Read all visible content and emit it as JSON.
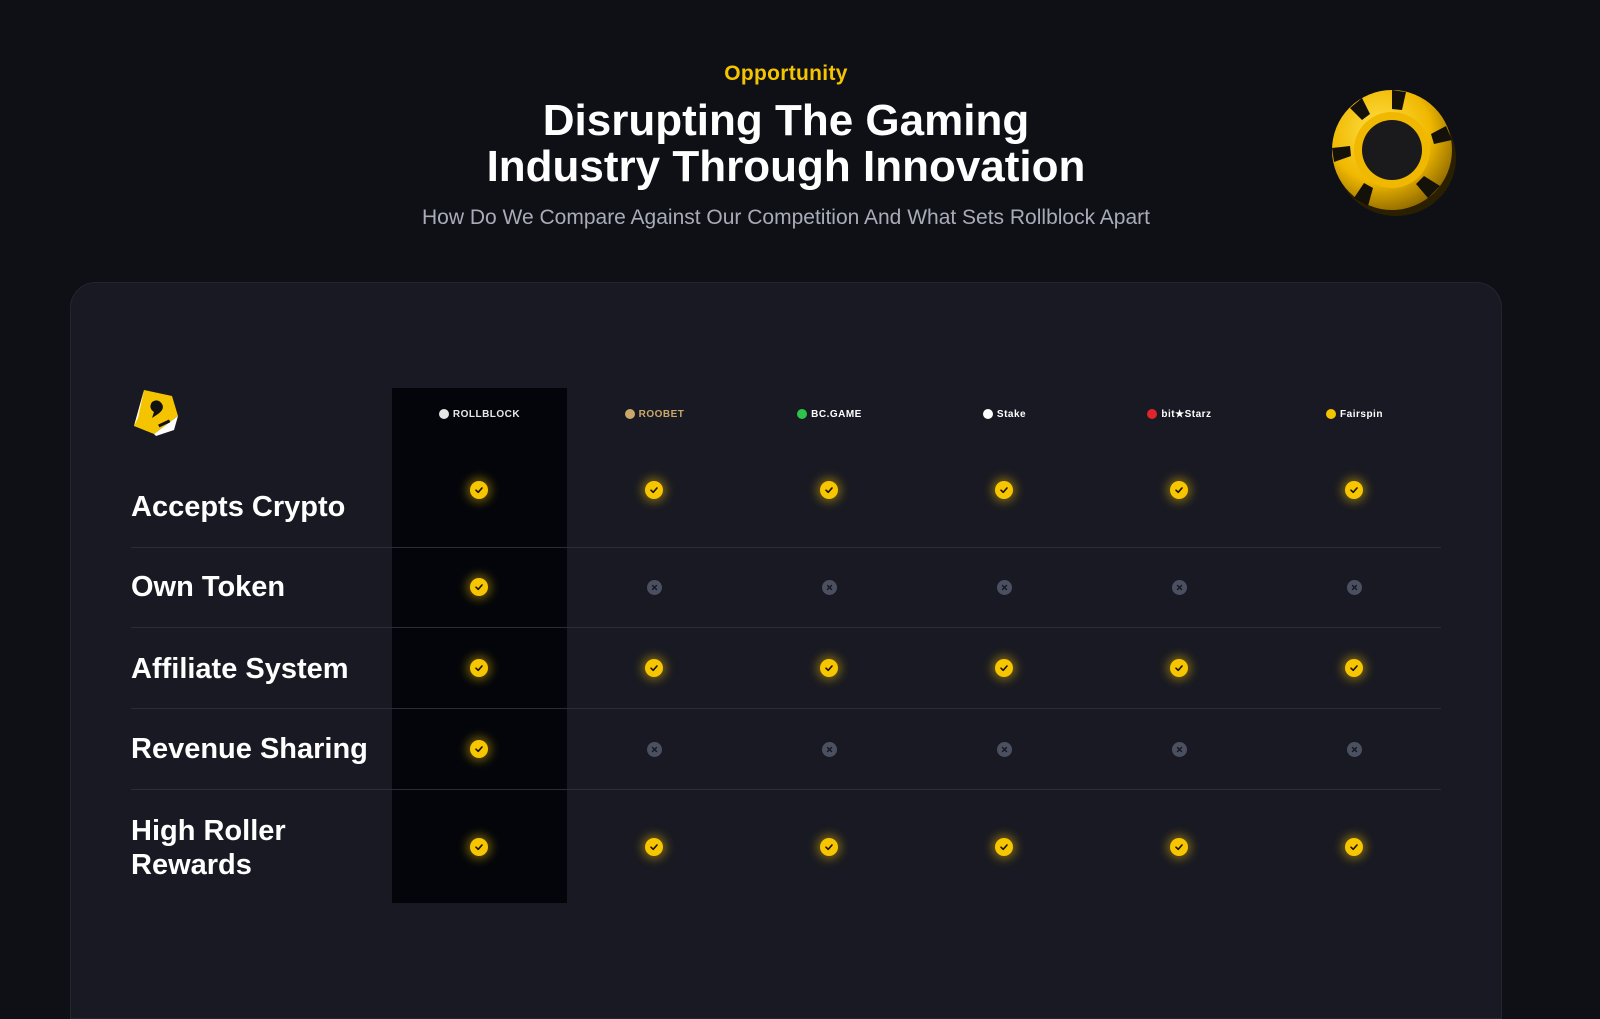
{
  "header": {
    "eyebrow": "Opportunity",
    "title_line1": "Disrupting The Gaming",
    "title_line2": "Industry Through Innovation",
    "subtitle": "How Do We Compare Against Our Competition And What Sets Rollblock Apart"
  },
  "competitors": [
    {
      "name": "ROLLBLOCK",
      "color": "#e6e6e6",
      "highlight": true
    },
    {
      "name": "ROOBET",
      "color": "#c9a86a"
    },
    {
      "name": "BC.GAME",
      "color": "#ffffff",
      "accent": "#2ec44a"
    },
    {
      "name": "Stake",
      "color": "#ffffff"
    },
    {
      "name": "bit★Starz",
      "color": "#ffffff",
      "accent": "#e0242b"
    },
    {
      "name": "Fairspin",
      "color": "#ffffff",
      "accent": "#f5c400"
    }
  ],
  "features": [
    {
      "label": "Accepts Crypto",
      "values": [
        true,
        true,
        true,
        true,
        true,
        true
      ]
    },
    {
      "label": "Own Token",
      "values": [
        true,
        false,
        false,
        false,
        false,
        false
      ]
    },
    {
      "label": "Affiliate System",
      "values": [
        true,
        true,
        true,
        true,
        true,
        true
      ]
    },
    {
      "label": "Revenue Sharing",
      "values": [
        true,
        false,
        false,
        false,
        false,
        false
      ]
    },
    {
      "label": "High Roller Rewards",
      "values": [
        true,
        true,
        true,
        true,
        true,
        true
      ]
    }
  ],
  "icons": {
    "check": "check-circle-icon",
    "cross": "x-circle-icon",
    "brand": "rollblock-dice-logo-icon",
    "decor": "poker-chip-icon"
  },
  "colors": {
    "accent": "#f5c400",
    "background": "#0f1016",
    "panel": "#181922",
    "highlight_column": "#03050a",
    "cross": "#4b5061"
  }
}
